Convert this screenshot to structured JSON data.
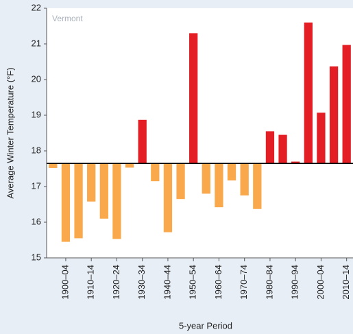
{
  "chart_data": {
    "type": "bar",
    "subtitle": "Vermont",
    "ylabel": "Average Winter Temperature (°F)",
    "xlabel": "5-year Period",
    "categories": [
      null,
      "1900–04",
      null,
      "1910–14",
      null,
      "1920–24",
      null,
      "1930–34",
      null,
      "1940–44",
      null,
      "1950–54",
      null,
      "1960–64",
      null,
      "1970–74",
      null,
      "1980–84",
      null,
      "1990–94",
      null,
      "2000–04",
      null,
      "2010–14"
    ],
    "values": [
      17.52,
      15.45,
      15.55,
      16.58,
      16.1,
      15.53,
      17.53,
      18.87,
      17.15,
      15.72,
      16.65,
      21.3,
      16.8,
      16.42,
      17.17,
      16.75,
      16.37,
      18.55,
      18.45,
      17.7,
      21.6,
      19.07,
      20.37,
      20.97
    ],
    "reference_line": 17.65,
    "color_above": "#e31e24",
    "color_below": "#f9a94b",
    "ylim": [
      15,
      22
    ],
    "yticks": [
      15,
      16,
      17,
      18,
      19,
      20,
      21,
      22
    ]
  }
}
